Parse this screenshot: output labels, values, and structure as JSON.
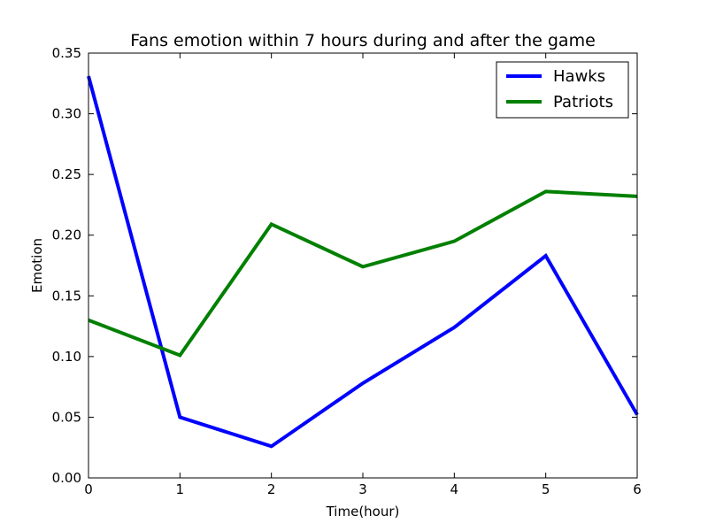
{
  "chart_data": {
    "type": "line",
    "title": "Fans emotion within 7 hours during and after the game",
    "xlabel": "Time(hour)",
    "ylabel": "Emotion",
    "xlim": [
      0,
      6
    ],
    "ylim": [
      0,
      0.35
    ],
    "xticks": [
      0,
      1,
      2,
      3,
      4,
      5,
      6
    ],
    "yticks": [
      0.0,
      0.05,
      0.1,
      0.15,
      0.2,
      0.25,
      0.3,
      0.35
    ],
    "xtick_labels": [
      "0",
      "1",
      "2",
      "3",
      "4",
      "5",
      "6"
    ],
    "ytick_labels": [
      "0.00",
      "0.05",
      "0.10",
      "0.15",
      "0.20",
      "0.25",
      "0.30",
      "0.35"
    ],
    "grid": false,
    "legend_position": "top-right",
    "x": [
      0,
      1,
      2,
      3,
      4,
      5,
      6
    ],
    "series": [
      {
        "name": "Hawks",
        "color": "#0000ff",
        "values": [
          0.331,
          0.05,
          0.026,
          0.078,
          0.124,
          0.183,
          0.052
        ]
      },
      {
        "name": "Patriots",
        "color": "#008000",
        "values": [
          0.13,
          0.101,
          0.209,
          0.174,
          0.195,
          0.236,
          0.232
        ]
      }
    ]
  }
}
